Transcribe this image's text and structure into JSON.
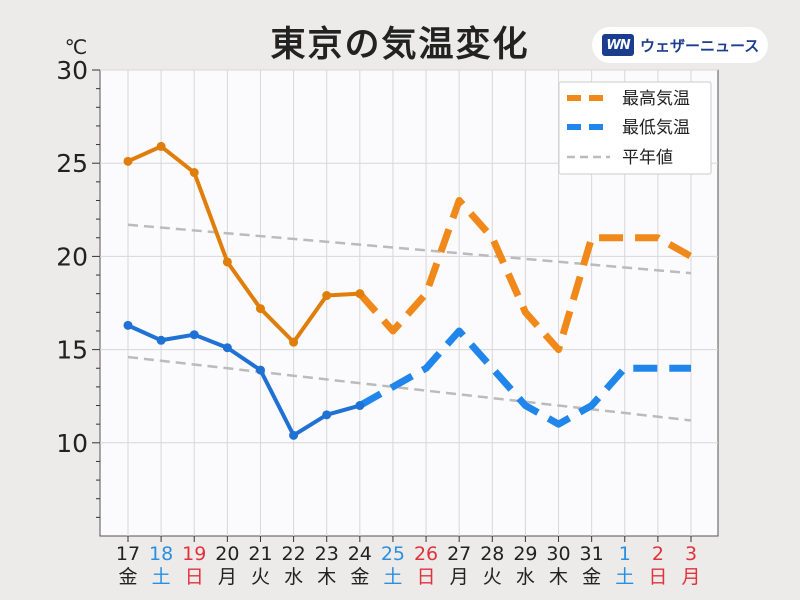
{
  "title": "東京の気温変化",
  "brand": {
    "logo_text": "WN",
    "name": "ウェザーニュース"
  },
  "chart_data": {
    "type": "line",
    "unit": "℃",
    "ylim": [
      5,
      30
    ],
    "yticks": [
      10,
      15,
      20,
      25,
      30
    ],
    "grid": true,
    "legend_position": "top-right",
    "categories": [
      {
        "day": "17",
        "weekday": "金",
        "color": "#222222"
      },
      {
        "day": "18",
        "weekday": "土",
        "color": "#2b8fe0"
      },
      {
        "day": "19",
        "weekday": "日",
        "color": "#e0323c"
      },
      {
        "day": "20",
        "weekday": "月",
        "color": "#222222"
      },
      {
        "day": "21",
        "weekday": "火",
        "color": "#222222"
      },
      {
        "day": "22",
        "weekday": "水",
        "color": "#222222"
      },
      {
        "day": "23",
        "weekday": "木",
        "color": "#222222"
      },
      {
        "day": "24",
        "weekday": "金",
        "color": "#222222"
      },
      {
        "day": "25",
        "weekday": "土",
        "color": "#2b8fe0"
      },
      {
        "day": "26",
        "weekday": "日",
        "color": "#e0323c"
      },
      {
        "day": "27",
        "weekday": "月",
        "color": "#222222"
      },
      {
        "day": "28",
        "weekday": "火",
        "color": "#222222"
      },
      {
        "day": "29",
        "weekday": "水",
        "color": "#222222"
      },
      {
        "day": "30",
        "weekday": "木",
        "color": "#222222"
      },
      {
        "day": "31",
        "weekday": "金",
        "color": "#222222"
      },
      {
        "day": "1",
        "weekday": "土",
        "color": "#2b8fe0"
      },
      {
        "day": "2",
        "weekday": "日",
        "color": "#e0323c"
      },
      {
        "day": "3",
        "weekday": "月",
        "color": "#e0323c"
      }
    ],
    "series": [
      {
        "name": "最高気温",
        "color": "#e07e0b",
        "forecast_color": "#f0891a",
        "observed": [
          25.1,
          25.9,
          24.5,
          19.7,
          17.2,
          15.4,
          17.9,
          18.0
        ],
        "forecast": [
          18.0,
          16.0,
          18.0,
          23.0,
          21.0,
          17.0,
          15.0,
          21.0,
          21.0,
          21.0,
          20.0
        ]
      },
      {
        "name": "最低気温",
        "color": "#1f72d4",
        "forecast_color": "#2186eb",
        "observed": [
          16.3,
          15.5,
          15.8,
          15.1,
          13.9,
          10.4,
          11.5,
          12.0
        ],
        "forecast": [
          12.0,
          13.0,
          14.0,
          16.0,
          14.0,
          12.0,
          11.0,
          12.0,
          14.0,
          14.0,
          14.0
        ]
      },
      {
        "name": "平年値",
        "color": "#bbbbbb",
        "high": [
          21.7,
          19.1
        ],
        "low": [
          14.6,
          11.2
        ]
      }
    ]
  }
}
